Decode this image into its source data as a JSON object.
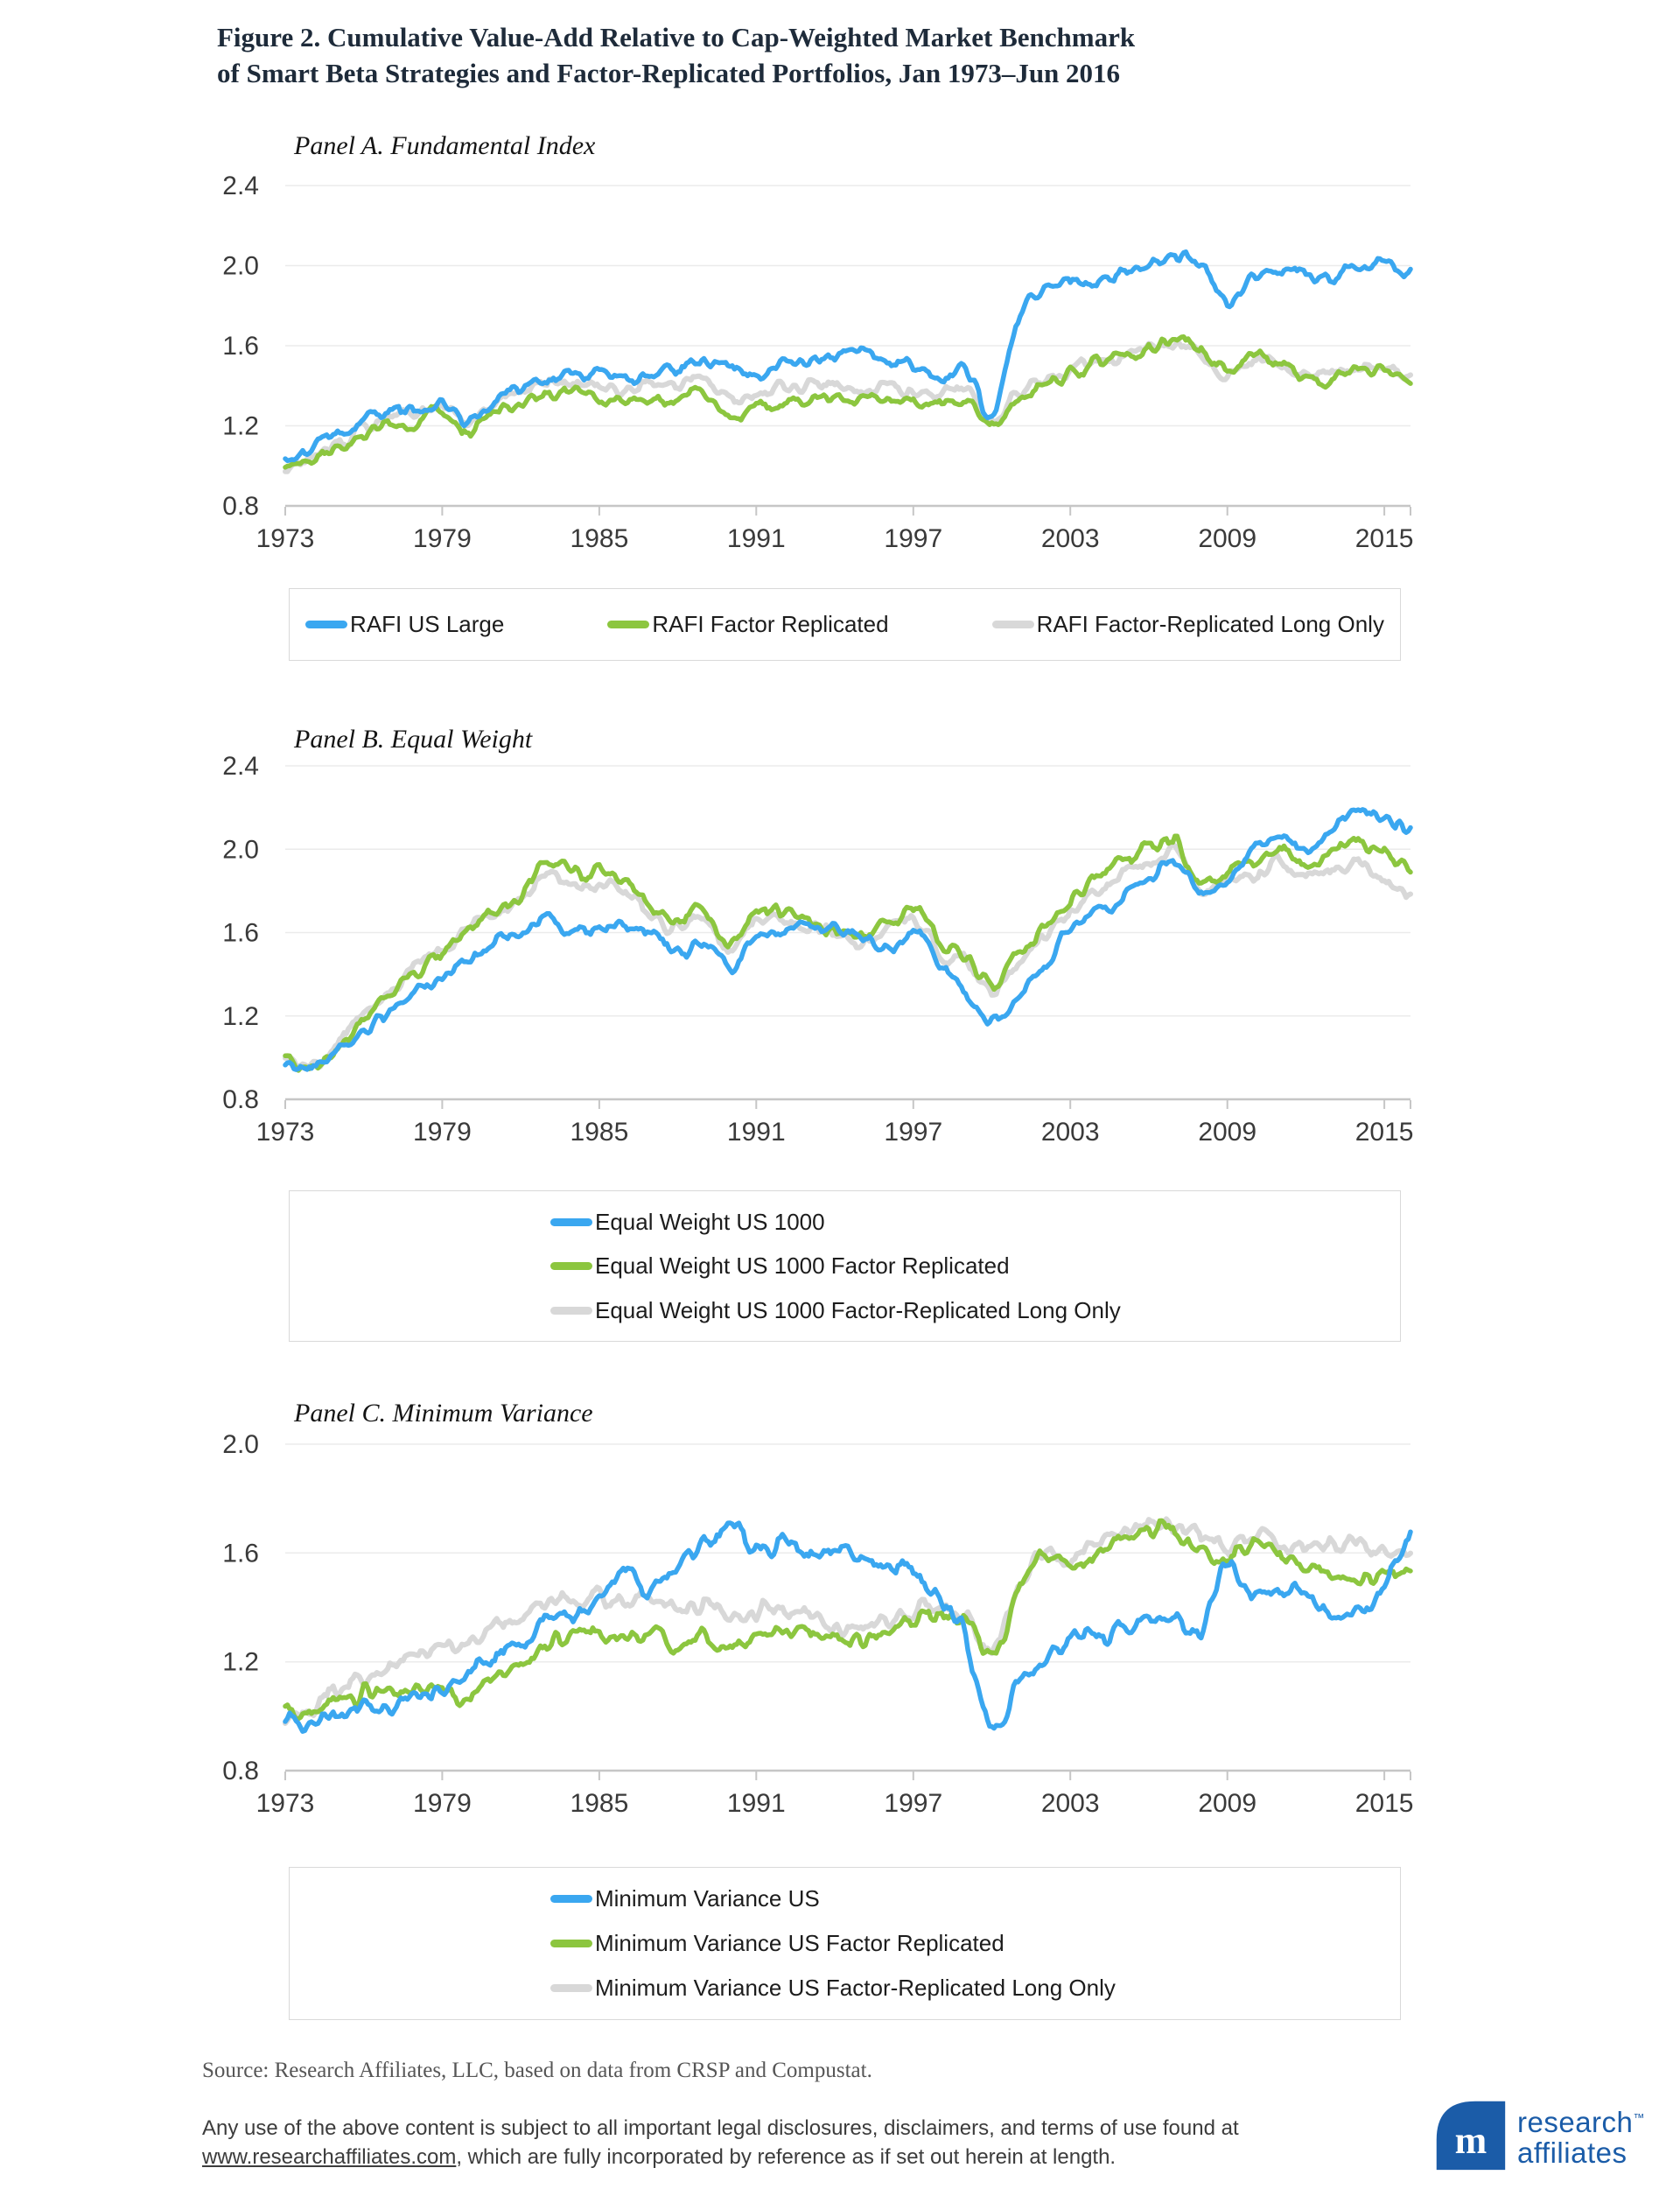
{
  "title": {
    "line1": "Figure 2. Cumulative Value-Add Relative to Cap-Weighted Market Benchmark",
    "line2": "of Smart Beta Strategies and Factor-Replicated Portfolios, Jan 1973–Jun 2016"
  },
  "colors": {
    "blue": "#3aa7f0",
    "green": "#8cc63f",
    "gray": "#d8d8d8",
    "grid": "#ebebeb",
    "axis": "#c6c6c6",
    "tick_text": "#3a3a3a"
  },
  "chart_data": [
    {
      "type": "line",
      "title": "Panel A.  Fundamental Index",
      "x_label_note": "years, Jan 1973 – Jun 2016",
      "x": [
        1973,
        1974,
        1975,
        1976,
        1977,
        1978,
        1979,
        1980,
        1981,
        1982,
        1983,
        1984,
        1985,
        1986,
        1987,
        1988,
        1989,
        1990,
        1991,
        1992,
        1993,
        1994,
        1995,
        1996,
        1997,
        1998,
        1999,
        2000,
        2001,
        2002,
        2003,
        2004,
        2005,
        2006,
        2007,
        2008,
        2009,
        2010,
        2011,
        2012,
        2013,
        2014,
        2015,
        2016
      ],
      "xticks": [
        1973,
        1979,
        1985,
        1991,
        1997,
        2003,
        2009,
        2015
      ],
      "yticks": [
        2.4,
        2.0,
        1.6,
        1.2,
        0.8
      ],
      "ylim": [
        0.8,
        2.4
      ],
      "grid": true,
      "legend_position": "bottom-horizontal",
      "series": [
        {
          "name": "RAFI US Large",
          "color": "#3aa7f0",
          "values": [
            1.02,
            1.08,
            1.13,
            1.22,
            1.28,
            1.27,
            1.3,
            1.24,
            1.33,
            1.38,
            1.43,
            1.45,
            1.47,
            1.44,
            1.47,
            1.48,
            1.52,
            1.49,
            1.46,
            1.51,
            1.53,
            1.55,
            1.55,
            1.53,
            1.5,
            1.43,
            1.5,
            1.25,
            1.75,
            1.88,
            1.91,
            1.93,
            1.96,
            2.0,
            2.04,
            2.02,
            1.8,
            1.96,
            1.99,
            1.94,
            1.93,
            1.99,
            2.0,
            1.97
          ]
        },
        {
          "name": "RAFI Factor Replicated",
          "color": "#8cc63f",
          "values": [
            1.0,
            1.04,
            1.08,
            1.16,
            1.22,
            1.22,
            1.26,
            1.17,
            1.26,
            1.31,
            1.35,
            1.36,
            1.34,
            1.32,
            1.35,
            1.34,
            1.36,
            1.25,
            1.29,
            1.31,
            1.33,
            1.33,
            1.32,
            1.33,
            1.31,
            1.3,
            1.33,
            1.19,
            1.34,
            1.41,
            1.46,
            1.51,
            1.55,
            1.58,
            1.63,
            1.58,
            1.47,
            1.56,
            1.5,
            1.44,
            1.43,
            1.48,
            1.47,
            1.43
          ]
        },
        {
          "name": "RAFI Factor-Replicated Long Only",
          "color": "#d8d8d8",
          "values": [
            0.99,
            1.05,
            1.1,
            1.18,
            1.25,
            1.26,
            1.3,
            1.22,
            1.32,
            1.37,
            1.41,
            1.42,
            1.4,
            1.38,
            1.42,
            1.4,
            1.42,
            1.32,
            1.35,
            1.38,
            1.4,
            1.4,
            1.38,
            1.39,
            1.37,
            1.36,
            1.38,
            1.23,
            1.36,
            1.42,
            1.47,
            1.52,
            1.55,
            1.58,
            1.61,
            1.56,
            1.45,
            1.55,
            1.49,
            1.46,
            1.45,
            1.49,
            1.49,
            1.45
          ]
        }
      ]
    },
    {
      "type": "line",
      "title": "Panel B. Equal Weight",
      "x_label_note": "years, Jan 1973 – Jun 2016",
      "x": [
        1973,
        1974,
        1975,
        1976,
        1977,
        1978,
        1979,
        1980,
        1981,
        1982,
        1983,
        1984,
        1985,
        1986,
        1987,
        1988,
        1989,
        1990,
        1991,
        1992,
        1993,
        1994,
        1995,
        1996,
        1997,
        1998,
        1999,
        2000,
        2001,
        2002,
        2003,
        2004,
        2005,
        2006,
        2007,
        2008,
        2009,
        2010,
        2011,
        2012,
        2013,
        2014,
        2015,
        2016
      ],
      "xticks": [
        1973,
        1979,
        1985,
        1991,
        1997,
        2003,
        2009,
        2015
      ],
      "yticks": [
        2.4,
        2.0,
        1.6,
        1.2,
        0.8
      ],
      "ylim": [
        0.8,
        2.4
      ],
      "grid": true,
      "legend_position": "bottom-vertical",
      "series": [
        {
          "name": "Equal Weight US 1000",
          "color": "#3aa7f0",
          "values": [
            1.0,
            0.96,
            1.03,
            1.12,
            1.22,
            1.31,
            1.38,
            1.48,
            1.56,
            1.6,
            1.67,
            1.6,
            1.62,
            1.63,
            1.6,
            1.5,
            1.56,
            1.42,
            1.56,
            1.6,
            1.64,
            1.62,
            1.58,
            1.52,
            1.6,
            1.47,
            1.32,
            1.18,
            1.26,
            1.45,
            1.6,
            1.7,
            1.76,
            1.86,
            1.96,
            1.8,
            1.86,
            2.0,
            2.06,
            2.0,
            2.1,
            2.19,
            2.14,
            2.09
          ]
        },
        {
          "name": "Equal Weight US 1000 Factor Replicated",
          "color": "#8cc63f",
          "values": [
            1.0,
            0.94,
            1.05,
            1.18,
            1.3,
            1.41,
            1.5,
            1.62,
            1.7,
            1.78,
            1.95,
            1.88,
            1.9,
            1.85,
            1.73,
            1.65,
            1.7,
            1.56,
            1.68,
            1.7,
            1.66,
            1.62,
            1.58,
            1.65,
            1.7,
            1.56,
            1.48,
            1.36,
            1.5,
            1.62,
            1.75,
            1.85,
            1.95,
            2.0,
            2.04,
            1.84,
            1.9,
            1.96,
            2.0,
            1.94,
            2.0,
            2.04,
            2.0,
            1.92
          ]
        },
        {
          "name": "Equal Weight US 1000 Factor-Replicated Long Only",
          "color": "#d8d8d8",
          "values": [
            1.0,
            0.97,
            1.07,
            1.2,
            1.32,
            1.43,
            1.52,
            1.63,
            1.7,
            1.76,
            1.88,
            1.82,
            1.84,
            1.8,
            1.69,
            1.62,
            1.67,
            1.53,
            1.65,
            1.67,
            1.63,
            1.59,
            1.55,
            1.62,
            1.66,
            1.52,
            1.45,
            1.31,
            1.47,
            1.58,
            1.71,
            1.81,
            1.9,
            1.95,
            1.99,
            1.8,
            1.85,
            1.89,
            1.93,
            1.87,
            1.89,
            1.93,
            1.86,
            1.78
          ]
        }
      ]
    },
    {
      "type": "line",
      "title": "Panel C. Minimum Variance",
      "x_label_note": "years, Jan 1973 – Jun 2016",
      "x": [
        1973,
        1974,
        1975,
        1976,
        1977,
        1978,
        1979,
        1980,
        1981,
        1982,
        1983,
        1984,
        1985,
        1986,
        1987,
        1988,
        1989,
        1990,
        1991,
        1992,
        1993,
        1994,
        1995,
        1996,
        1997,
        1998,
        1999,
        2000,
        2001,
        2002,
        2003,
        2004,
        2005,
        2006,
        2007,
        2008,
        2009,
        2010,
        2011,
        2012,
        2013,
        2014,
        2015,
        2016
      ],
      "xticks": [
        1973,
        1979,
        1985,
        1991,
        1997,
        2003,
        2009,
        2015
      ],
      "yticks": [
        2.0,
        1.6,
        1.2,
        0.8
      ],
      "ylim": [
        0.8,
        2.0
      ],
      "grid": true,
      "legend_position": "bottom-vertical",
      "series": [
        {
          "name": "Minimum Variance US",
          "color": "#3aa7f0",
          "values": [
            1.0,
            0.97,
            1.0,
            1.05,
            1.02,
            1.06,
            1.1,
            1.15,
            1.22,
            1.28,
            1.35,
            1.38,
            1.45,
            1.52,
            1.48,
            1.56,
            1.63,
            1.7,
            1.62,
            1.64,
            1.6,
            1.62,
            1.59,
            1.55,
            1.52,
            1.44,
            1.3,
            0.95,
            1.12,
            1.22,
            1.28,
            1.3,
            1.33,
            1.35,
            1.35,
            1.32,
            1.58,
            1.42,
            1.48,
            1.45,
            1.4,
            1.38,
            1.48,
            1.65
          ]
        },
        {
          "name": "Minimum Variance US Factor Replicated",
          "color": "#8cc63f",
          "values": [
            1.0,
            1.02,
            1.06,
            1.08,
            1.1,
            1.1,
            1.12,
            1.06,
            1.15,
            1.2,
            1.26,
            1.3,
            1.3,
            1.28,
            1.3,
            1.26,
            1.28,
            1.25,
            1.3,
            1.3,
            1.32,
            1.28,
            1.28,
            1.3,
            1.35,
            1.38,
            1.35,
            1.22,
            1.45,
            1.6,
            1.55,
            1.6,
            1.65,
            1.67,
            1.68,
            1.6,
            1.58,
            1.62,
            1.58,
            1.55,
            1.52,
            1.52,
            1.5,
            1.55
          ]
        },
        {
          "name": "Minimum Variance US Factor-Replicated Long Only",
          "color": "#d8d8d8",
          "values": [
            1.0,
            1.04,
            1.1,
            1.14,
            1.18,
            1.22,
            1.25,
            1.28,
            1.33,
            1.37,
            1.42,
            1.44,
            1.44,
            1.42,
            1.44,
            1.38,
            1.4,
            1.36,
            1.4,
            1.38,
            1.38,
            1.34,
            1.34,
            1.36,
            1.38,
            1.4,
            1.36,
            1.24,
            1.48,
            1.62,
            1.58,
            1.63,
            1.68,
            1.7,
            1.7,
            1.65,
            1.62,
            1.66,
            1.64,
            1.62,
            1.62,
            1.64,
            1.6,
            1.58
          ]
        }
      ]
    }
  ],
  "source_note": "Source: Research Affiliates, LLC, based on data from CRSP and Compustat.",
  "disclaimer": {
    "line1": "Any use of the above content is subject to all important legal disclosures, disclaimers, and terms of use found at",
    "link": "www.researchaffiliates.com",
    "line2_rest": ", which are fully incorporated by reference as if set out herein at length."
  },
  "logo": {
    "monogram": "m",
    "word1": "research",
    "tm": "™",
    "word2": "affiliates",
    "brand_color": "#1b5ca8"
  }
}
